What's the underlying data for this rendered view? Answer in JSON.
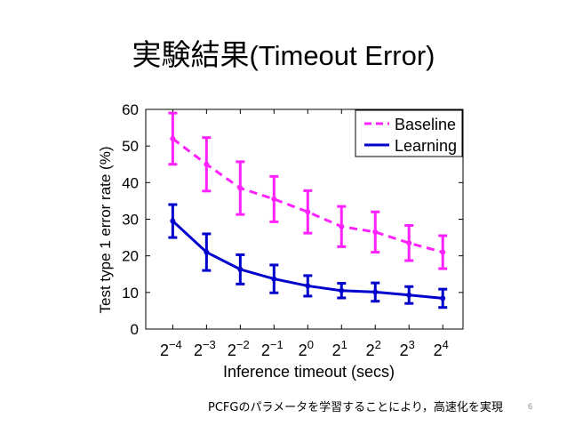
{
  "slide": {
    "title_jp": "実験結果",
    "title_en": "(Timeout Error)",
    "caption": "PCFGのパラメータを学習することにより，高速化を実現",
    "page_number": "6"
  },
  "chart_data": {
    "type": "line",
    "xlabel": "Inference timeout (secs)",
    "ylabel": "Test type 1 error rate (%)",
    "ylim": [
      0,
      60
    ],
    "yticks": [
      "0",
      "10",
      "20",
      "30",
      "40",
      "50",
      "60"
    ],
    "x_base": "2",
    "x_exponents": [
      "−4",
      "−3",
      "−2",
      "−1",
      "0",
      "1",
      "2",
      "3",
      "4"
    ],
    "x": [
      -4,
      -3,
      -2,
      -1,
      0,
      1,
      2,
      3,
      4
    ],
    "grid": false,
    "legend_position": "top-right",
    "series": [
      {
        "name": "Baseline",
        "color": "#ff22ff",
        "style": "dashed",
        "values": [
          52,
          45,
          38.5,
          35.5,
          32,
          28,
          26.5,
          23.5,
          21
        ],
        "err": [
          7,
          7.3,
          7.2,
          6.2,
          5.8,
          5.5,
          5.5,
          4.8,
          4.5
        ]
      },
      {
        "name": "Learning",
        "color": "#0000cc",
        "style": "solid",
        "values": [
          29.5,
          21,
          16.3,
          13.7,
          11.8,
          10.5,
          10.1,
          9.3,
          8.4
        ],
        "err": [
          4.5,
          5,
          4,
          3.8,
          2.8,
          2,
          2.5,
          2.3,
          2.5
        ]
      }
    ]
  }
}
